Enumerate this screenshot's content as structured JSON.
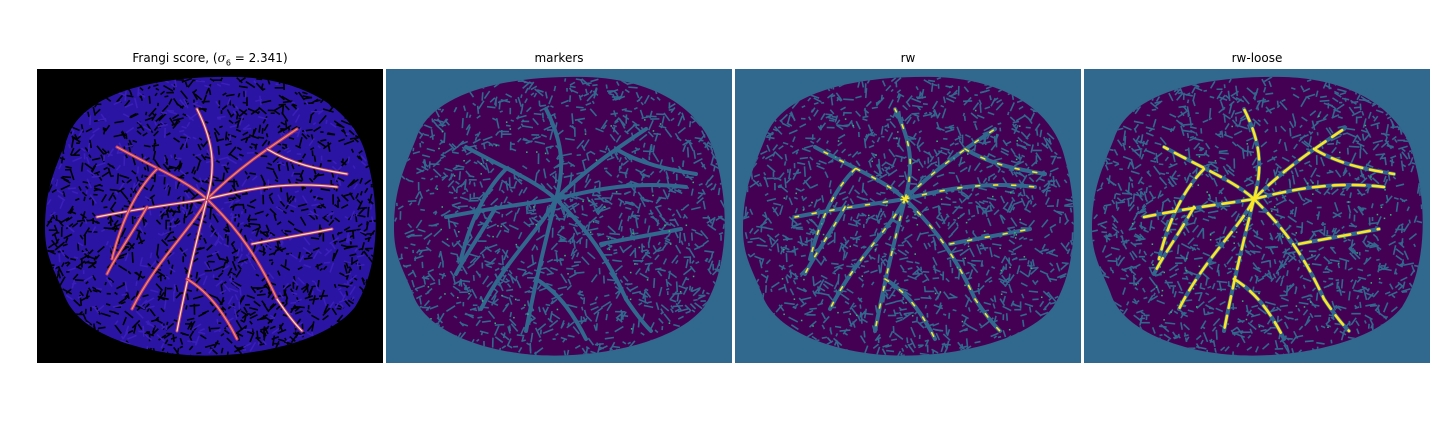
{
  "figure": {
    "panels": [
      {
        "id": "frangi",
        "title_prefix": "Frangi score, (",
        "title_sigma": "σ",
        "title_sub": "6",
        "title_rest": " = 2.341)",
        "colormap": "magma",
        "background": "#000000",
        "disk_color": "#2a14a4",
        "vessel_colors": [
          "#b5367a",
          "#fb8a50",
          "#fde3a5"
        ]
      },
      {
        "id": "markers",
        "title": "markers",
        "colormap": "viridis",
        "background": "#31688e",
        "disk_color": "#440154",
        "texture_color": "#31688e",
        "marker_color": "#35b779"
      },
      {
        "id": "rw",
        "title": "rw",
        "colormap": "viridis",
        "background": "#31688e",
        "disk_color": "#440154",
        "texture_color": "#31688e",
        "marker_color": "#35b779",
        "segment_color": "#fde725"
      },
      {
        "id": "rw-loose",
        "title": "rw-loose",
        "colormap": "viridis",
        "background": "#31688e",
        "disk_color": "#440154",
        "texture_color": "#31688e",
        "marker_color": "#35b779",
        "segment_color": "#fde725"
      }
    ]
  }
}
